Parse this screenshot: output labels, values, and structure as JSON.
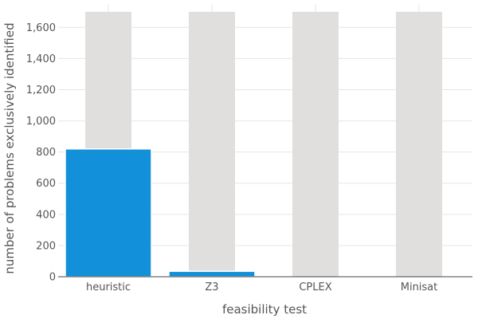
{
  "chart_data": {
    "type": "bar",
    "categories": [
      "heuristic",
      "Z3",
      "CPLEX",
      "Minisat"
    ],
    "series": [
      {
        "values": [
          1700,
          1700,
          1700,
          1700
        ]
      },
      {
        "values": [
          820,
          35,
          0,
          0
        ]
      }
    ],
    "xlabel": "feasibility test",
    "ylabel": "number of problems exclusively identified",
    "ylim": [
      0,
      1750
    ],
    "yticks": [
      0,
      200,
      400,
      600,
      800,
      1000,
      1200,
      1400,
      1600
    ],
    "ytick_labels": [
      "0",
      "200",
      "400",
      "600",
      "800",
      "1,000",
      "1,200",
      "1,400",
      "1,600"
    ],
    "grid": true,
    "colors": {
      "background_bar": "#e0dfdd",
      "highlight_bar": "#1290d9",
      "grid": "#e6e6e6",
      "axis": "#444444"
    }
  }
}
